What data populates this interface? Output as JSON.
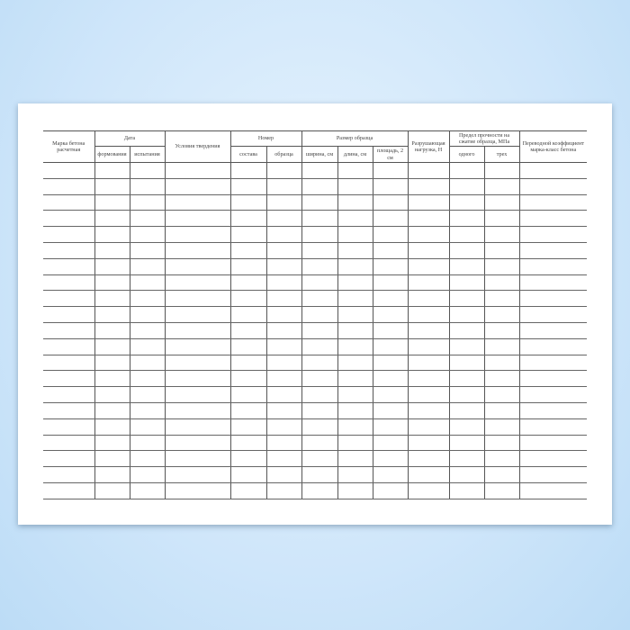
{
  "headers": {
    "grade": "Марка бетона расчетная",
    "date": "Дата",
    "date_formed": "формования",
    "date_tested": "испытания",
    "curing": "Условия твердения",
    "number": "Номер",
    "number_mix": "состава",
    "number_sample": "образца",
    "size": "Размер образца",
    "width": "ширина, см",
    "length": "длина, см",
    "area": "площадь, 2  см",
    "load": "Разрушающая нагрузка, Н",
    "strength": "Предел прочности на сжатие образца, МПа",
    "strength_one": "одного",
    "strength_three": "трех",
    "coef": "Переводной коэффициент марка-класс бетона"
  },
  "row_count": 21
}
